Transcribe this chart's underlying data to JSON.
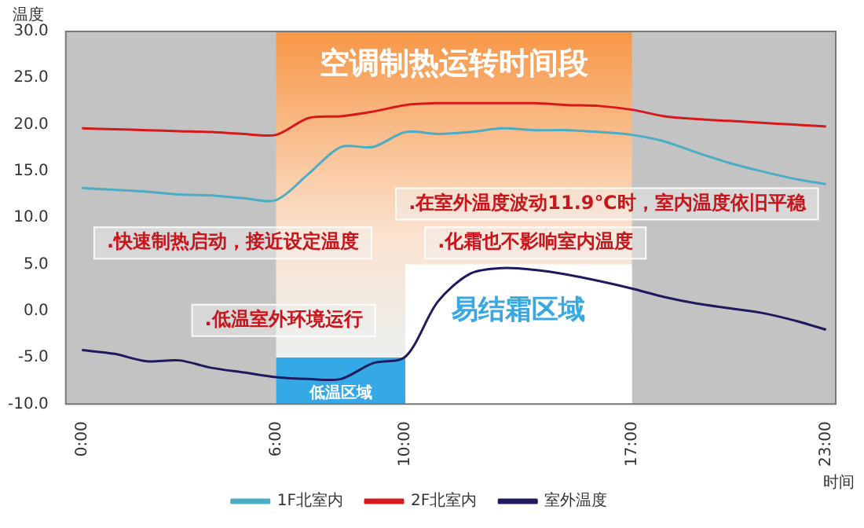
{
  "chart_data": {
    "type": "line",
    "ylabel": "温度",
    "xlabel": "时间",
    "x": [
      0,
      1,
      2,
      3,
      4,
      5,
      6,
      7,
      8,
      9,
      10,
      11,
      12,
      13,
      14,
      15,
      16,
      17,
      18,
      19,
      20,
      21,
      22,
      23
    ],
    "series": [
      {
        "name": "1F北室内",
        "color": "#4bacc6",
        "values": [
          13.2,
          13.0,
          12.8,
          12.5,
          12.4,
          12.1,
          11.9,
          14.7,
          17.6,
          17.6,
          19.2,
          19.0,
          19.2,
          19.6,
          19.4,
          19.4,
          19.2,
          18.9,
          18.2,
          17.0,
          15.9,
          15.0,
          14.2,
          13.6
        ]
      },
      {
        "name": "2F北室内",
        "color": "#d7191c",
        "values": [
          19.6,
          19.5,
          19.4,
          19.3,
          19.2,
          19.0,
          18.9,
          20.7,
          20.9,
          21.4,
          22.1,
          22.3,
          22.3,
          22.3,
          22.3,
          22.1,
          22.0,
          21.6,
          20.9,
          20.6,
          20.4,
          20.2,
          20.0,
          19.8
        ]
      },
      {
        "name": "室外温度",
        "color": "#1f1a5e",
        "values": [
          -4.2,
          -4.6,
          -5.4,
          -5.3,
          -6.1,
          -6.6,
          -7.1,
          -7.3,
          -7.3,
          -5.6,
          -4.9,
          1.0,
          4.0,
          4.6,
          4.4,
          3.9,
          3.2,
          2.4,
          1.5,
          0.8,
          0.3,
          -0.2,
          -1.0,
          -2.0
        ]
      }
    ],
    "xlim": [
      -0.5,
      23.3
    ],
    "xticks": [
      {
        "value": 0,
        "label": "0:00"
      },
      {
        "value": 6,
        "label": "6:00"
      },
      {
        "value": 10,
        "label": "10:00"
      },
      {
        "value": 17,
        "label": "17:00"
      },
      {
        "value": 23,
        "label": "23:00"
      }
    ],
    "ylim": [
      -10,
      30
    ],
    "yticks": [
      {
        "value": -10,
        "label": "-10.0"
      },
      {
        "value": -5,
        "label": "-5.0"
      },
      {
        "value": 0,
        "label": "0.0"
      },
      {
        "value": 5,
        "label": "5.0"
      },
      {
        "value": 10,
        "label": "10.0"
      },
      {
        "value": 15,
        "label": "15.0"
      },
      {
        "value": 20,
        "label": "20.0"
      },
      {
        "value": 25,
        "label": "25.0"
      },
      {
        "value": 30,
        "label": "30.0"
      }
    ],
    "bands": [
      {
        "axis": "x",
        "from": 6,
        "to": 17,
        "label": "空调制热运转时间段",
        "color": "#f79646"
      },
      {
        "axis": "x",
        "from": 6,
        "to": 10,
        "label": "低温区域",
        "color": "#35a9e6"
      },
      {
        "axis": "x",
        "from": 10,
        "to": 17,
        "label": "易结霜区域",
        "color": "#ffffff"
      }
    ],
    "annotations": [
      ".快速制热启动，接近设定温度",
      ".在室外温度波动11.9℃时，室内温度依旧平稳",
      ".化霜也不影响室内温度",
      ".低温室外环境运行"
    ],
    "legend": "bottom",
    "grid": false
  }
}
